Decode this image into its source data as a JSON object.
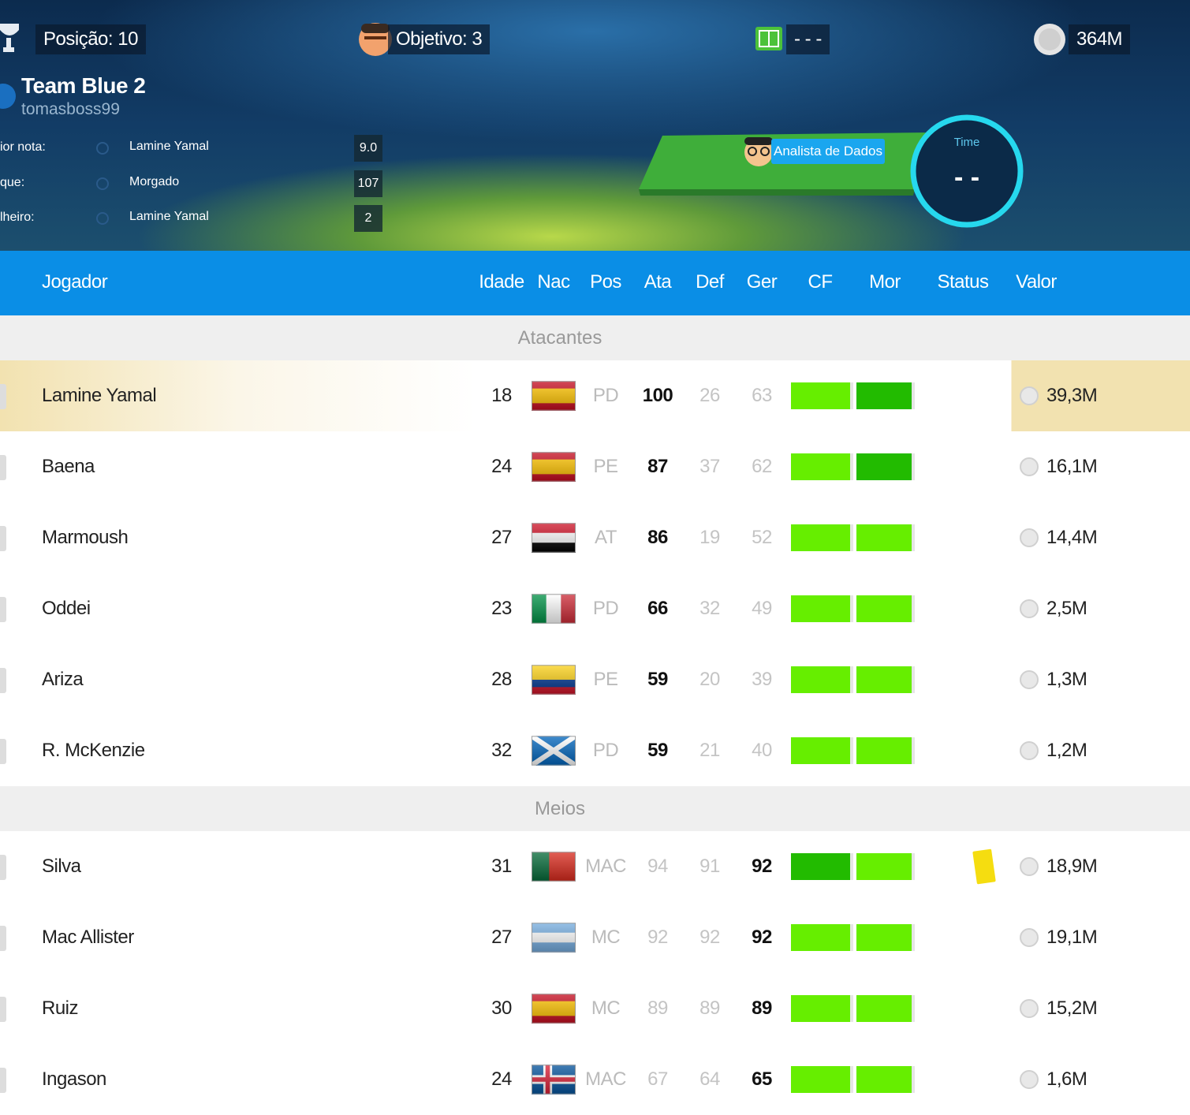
{
  "header": {
    "position_label": "Posição:",
    "position": 10,
    "objective_label": "Objetivo:",
    "objective": 3,
    "field_text": "- - -",
    "money": "364M"
  },
  "team": {
    "name": "Team Blue 2",
    "user": "tomasboss99",
    "stats": [
      {
        "label": "ior nota:",
        "player": "Lamine Yamal",
        "value": "9.0"
      },
      {
        "label": "que:",
        "player": "Morgado",
        "value": 107
      },
      {
        "label": "lheiro:",
        "player": "Lamine Yamal",
        "value": 2
      }
    ]
  },
  "analyst": "Analista de Dados",
  "time_badge": {
    "label": "Time",
    "value": "- -"
  },
  "table": {
    "columns": [
      "Jogador",
      "Idade",
      "Nac",
      "Pos",
      "Ata",
      "Def",
      "Ger",
      "CF",
      "Mor",
      "Status",
      "Valor"
    ],
    "sections": [
      {
        "title": "Atacantes",
        "key_column": "ata",
        "players": [
          {
            "name": "Lamine Yamal",
            "age": 18,
            "pos": "PD",
            "ata": 100,
            "def": 26,
            "ger": 63,
            "value": "39,3M",
            "highlight_color": "#f2e2b0",
            "cf_color": "#66ee00",
            "mor_color": "#22bb00",
            "flag": {
              "dir": "h",
              "colors": [
                "#c60b1e",
                "#ffc400",
                "#c60b1e"
              ],
              "weights": [
                1,
                2,
                1
              ]
            }
          },
          {
            "name": "Baena",
            "age": 24,
            "pos": "PE",
            "ata": 87,
            "def": 37,
            "ger": 62,
            "value": "16,1M",
            "cf_color": "#66ee00",
            "mor_color": "#22bb00",
            "flag": {
              "dir": "h",
              "colors": [
                "#c60b1e",
                "#ffc400",
                "#c60b1e"
              ],
              "weights": [
                1,
                2,
                1
              ]
            }
          },
          {
            "name": "Marmoush",
            "age": 27,
            "pos": "AT",
            "ata": 86,
            "def": 19,
            "ger": 52,
            "value": "14,4M",
            "cf_color": "#66ee00",
            "mor_color": "#66ee00",
            "flag": {
              "dir": "h",
              "colors": [
                "#ce1126",
                "#ffffff",
                "#000000"
              ],
              "weights": [
                1,
                1,
                1
              ]
            }
          },
          {
            "name": "Oddei",
            "age": 23,
            "pos": "PD",
            "ata": 66,
            "def": 32,
            "ger": 49,
            "value": "2,5M",
            "cf_color": "#66ee00",
            "mor_color": "#66ee00",
            "flag": {
              "dir": "v",
              "colors": [
                "#009246",
                "#ffffff",
                "#ce2b37"
              ],
              "weights": [
                1,
                1,
                1
              ]
            }
          },
          {
            "name": "Ariza",
            "age": 28,
            "pos": "PE",
            "ata": 59,
            "def": 20,
            "ger": 39,
            "value": "1,3M",
            "cf_color": "#66ee00",
            "mor_color": "#66ee00",
            "flag": {
              "dir": "h",
              "colors": [
                "#fcd116",
                "#003893",
                "#ce1126"
              ],
              "weights": [
                2,
                1,
                1
              ]
            }
          },
          {
            "name": "R. McKenzie",
            "age": 32,
            "pos": "PD",
            "ata": 59,
            "def": 21,
            "ger": 40,
            "value": "1,2M",
            "cf_color": "#66ee00",
            "mor_color": "#66ee00",
            "flag": {
              "dir": "h",
              "colors": [
                "#0065bd"
              ],
              "weights": [
                1
              ],
              "saltire": "#ffffff"
            }
          }
        ]
      },
      {
        "title": "Meios",
        "key_column": "ger",
        "players": [
          {
            "name": "Silva",
            "age": 31,
            "pos": "MAC",
            "ata": 94,
            "def": 91,
            "ger": 92,
            "value": "18,9M",
            "cf_color": "#22bb00",
            "mor_color": "#66ee00",
            "card_color": "#f5dd10",
            "flag": {
              "dir": "v",
              "colors": [
                "#046a38",
                "#da291c"
              ],
              "weights": [
                2,
                3
              ]
            }
          },
          {
            "name": "Mac Allister",
            "age": 27,
            "pos": "MC",
            "ata": 92,
            "def": 92,
            "ger": 92,
            "value": "19,1M",
            "cf_color": "#66ee00",
            "mor_color": "#66ee00",
            "flag": {
              "dir": "h",
              "colors": [
                "#74acdf",
                "#ffffff",
                "#74acdf"
              ],
              "weights": [
                1,
                1,
                1
              ]
            }
          },
          {
            "name": "Ruiz",
            "age": 30,
            "pos": "MC",
            "ata": 89,
            "def": 89,
            "ger": 89,
            "value": "15,2M",
            "cf_color": "#66ee00",
            "mor_color": "#66ee00",
            "flag": {
              "dir": "h",
              "colors": [
                "#c60b1e",
                "#ffc400",
                "#c60b1e"
              ],
              "weights": [
                1,
                2,
                1
              ]
            }
          },
          {
            "name": "Ingason",
            "age": 24,
            "pos": "MAC",
            "ata": 67,
            "def": 64,
            "ger": 65,
            "value": "1,6M",
            "cf_color": "#66ee00",
            "mor_color": "#66ee00",
            "flag": {
              "dir": "h",
              "colors": [
                "#02529c"
              ],
              "weights": [
                1
              ],
              "cross": [
                "#ffffff",
                "#dc1e35"
              ]
            }
          }
        ]
      }
    ]
  }
}
